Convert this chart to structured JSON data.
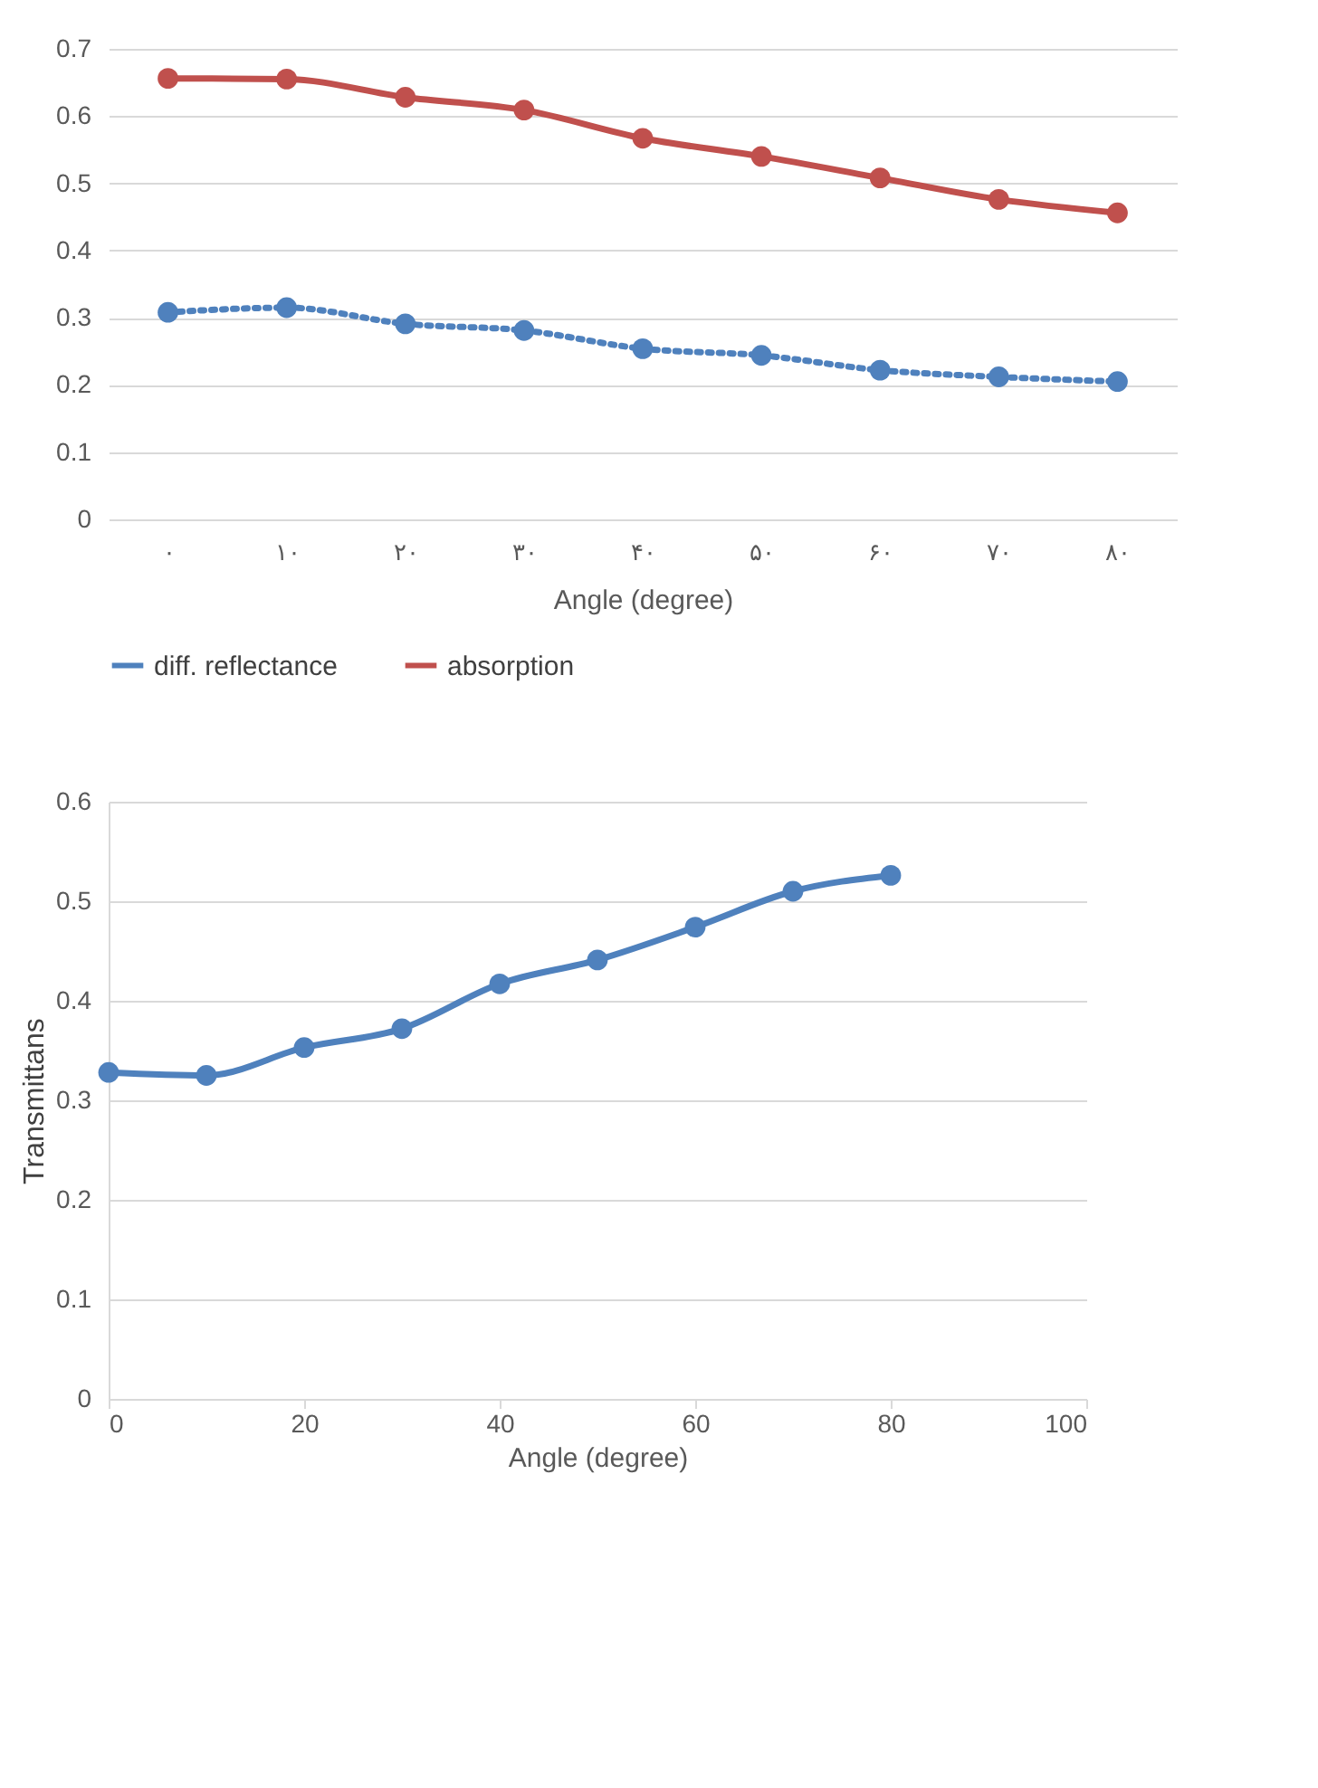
{
  "chart_data": [
    {
      "type": "line",
      "xlabel": "Angle (degree)",
      "categories": [
        "۰",
        "۱۰",
        "۲۰",
        "۳۰",
        "۴۰",
        "۵۰",
        "۶۰",
        "۷۰",
        "۸۰"
      ],
      "series": [
        {
          "name": "diff. reflectance",
          "color": "#4f81bd",
          "line_style": "dotted",
          "values": [
            0.308,
            0.315,
            0.291,
            0.281,
            0.254,
            0.244,
            0.222,
            0.212,
            0.205
          ]
        },
        {
          "name": "absorption",
          "color": "#c0504d",
          "line_style": "solid",
          "values": [
            0.656,
            0.655,
            0.628,
            0.609,
            0.567,
            0.54,
            0.508,
            0.476,
            0.456
          ]
        }
      ],
      "ylim": [
        0,
        0.7
      ],
      "yticks": [
        0,
        0.1,
        0.2,
        0.3,
        0.4,
        0.5,
        0.6,
        0.7
      ],
      "grid": "y",
      "legend": "bottom",
      "marker": "circle"
    },
    {
      "type": "line",
      "xlabel": "Angle (degree)",
      "ylabel": "Transmittans",
      "x": [
        0,
        10,
        20,
        30,
        40,
        50,
        60,
        70,
        80
      ],
      "series": [
        {
          "color": "#4f81bd",
          "line_style": "solid",
          "values": [
            0.328,
            0.325,
            0.353,
            0.372,
            0.417,
            0.441,
            0.474,
            0.51,
            0.526
          ]
        }
      ],
      "xlim": [
        0,
        100
      ],
      "xticks": [
        0,
        20,
        40,
        60,
        80,
        100
      ],
      "ylim": [
        0,
        0.6
      ],
      "yticks": [
        0,
        0.1,
        0.2,
        0.3,
        0.4,
        0.5,
        0.6
      ],
      "grid": "y",
      "marker": "circle"
    }
  ]
}
